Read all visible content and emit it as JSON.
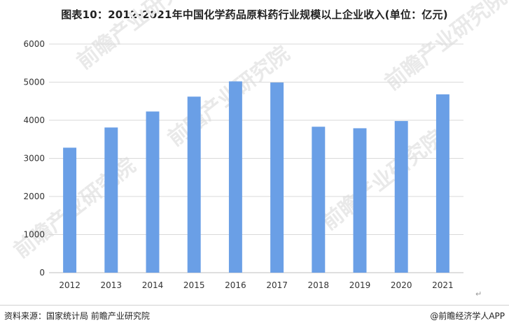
{
  "chart_data": {
    "type": "bar",
    "title": "图表10：2012-2021年中国化学药品原料药行业规模以上企业收入(单位：亿元)",
    "categories": [
      "2012",
      "2013",
      "2014",
      "2015",
      "2016",
      "2017",
      "2018",
      "2019",
      "2020",
      "2021"
    ],
    "values": [
      3280,
      3810,
      4230,
      4620,
      5020,
      4990,
      3830,
      3790,
      3980,
      4680
    ],
    "ylim": [
      0,
      6000
    ],
    "yticks": [
      0,
      1000,
      2000,
      3000,
      4000,
      5000,
      6000
    ],
    "grid": true,
    "bar_color": "#6a9fe6",
    "grid_color": "#d9d9d9"
  },
  "footer": {
    "source": "资料来源：国家统计局 前瞻产业研究院",
    "brand": "@前瞻经济学人APP"
  },
  "watermark": {
    "text": "前瞻产业研究院"
  },
  "return_mark": "↵"
}
